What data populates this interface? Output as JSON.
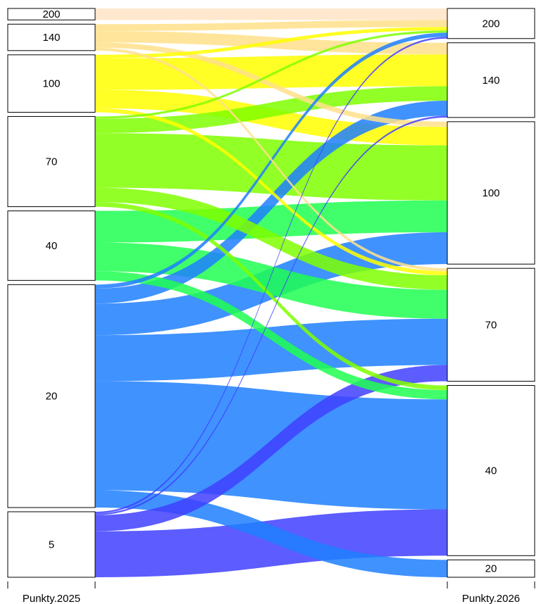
{
  "chart_data": {
    "type": "alluvial",
    "axes": [
      "Punkty.2025",
      "Punkty.2026"
    ],
    "categories_left": [
      "200",
      "140",
      "100",
      "70",
      "40",
      "20",
      "5"
    ],
    "categories_right": [
      "200",
      "140",
      "100",
      "70",
      "40",
      "20"
    ],
    "category_colors": {
      "200": "#FFE4C4",
      "140": "#FFE08A",
      "100": "#FFFF00",
      "70": "#7FFF00",
      "40": "#1EFF50",
      "20": "#1E7FFF",
      "5": "#4040FF"
    },
    "flows": [
      {
        "from": "200",
        "to": "200",
        "value": 2.0
      },
      {
        "from": "140",
        "to": "200",
        "value": 1.2
      },
      {
        "from": "140",
        "to": "140",
        "value": 2.0
      },
      {
        "from": "140",
        "to": "100",
        "value": 0.9
      },
      {
        "from": "140",
        "to": "70",
        "value": 0.5
      },
      {
        "from": "100",
        "to": "200",
        "value": 0.6
      },
      {
        "from": "100",
        "to": "140",
        "value": 5.5
      },
      {
        "from": "100",
        "to": "100",
        "value": 3.2
      },
      {
        "from": "100",
        "to": "70",
        "value": 0.7
      },
      {
        "from": "70",
        "to": "200",
        "value": 0.4
      },
      {
        "from": "70",
        "to": "140",
        "value": 2.5
      },
      {
        "from": "70",
        "to": "100",
        "value": 9.5
      },
      {
        "from": "70",
        "to": "70",
        "value": 2.5
      },
      {
        "from": "70",
        "to": "40",
        "value": 0.8
      },
      {
        "from": "40",
        "to": "100",
        "value": 5.5
      },
      {
        "from": "40",
        "to": "70",
        "value": 5.0
      },
      {
        "from": "40",
        "to": "40",
        "value": 1.6
      },
      {
        "from": "20",
        "to": "200",
        "value": 0.7
      },
      {
        "from": "20",
        "to": "140",
        "value": 2.6
      },
      {
        "from": "20",
        "to": "100",
        "value": 5.5
      },
      {
        "from": "20",
        "to": "70",
        "value": 8.0
      },
      {
        "from": "20",
        "to": "40",
        "value": 19.0
      },
      {
        "from": "20",
        "to": "20",
        "value": 3.0
      },
      {
        "from": "5",
        "to": "200",
        "value": 0.3
      },
      {
        "from": "5",
        "to": "140",
        "value": 0.3
      },
      {
        "from": "5",
        "to": "70",
        "value": 2.8
      },
      {
        "from": "5",
        "to": "40",
        "value": 8.0
      }
    ]
  }
}
